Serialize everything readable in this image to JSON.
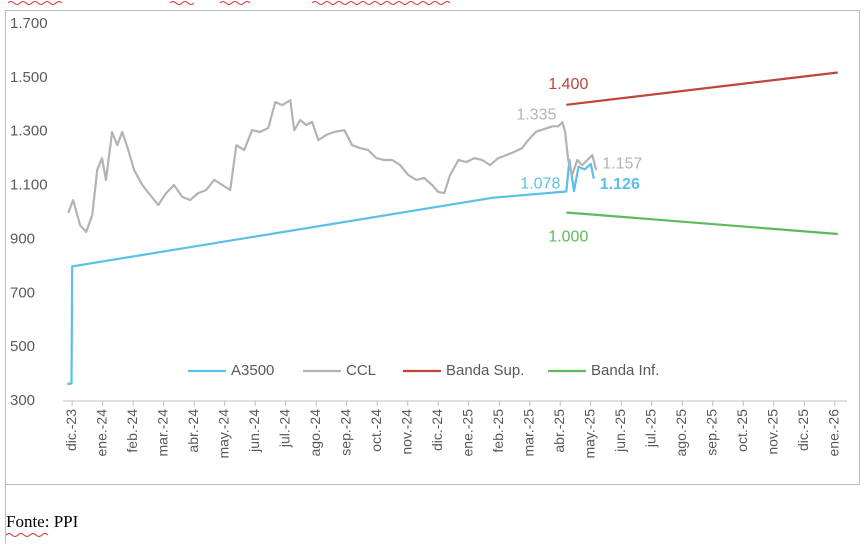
{
  "chart_data": {
    "type": "line",
    "xlim": [
      -0.3,
      25.4
    ],
    "ylim": [
      300,
      1700
    ],
    "yticks": [
      300,
      500,
      700,
      900,
      {
        "value": 1100,
        "label": "1.100"
      },
      {
        "value": 1300,
        "label": "1.300"
      },
      {
        "value": 1500,
        "label": "1.500"
      },
      {
        "value": 1700,
        "label": "1.700"
      }
    ],
    "xticks": [
      {
        "value": 0,
        "label": "dic.-23"
      },
      {
        "value": 1,
        "label": "ene.-24"
      },
      {
        "value": 2,
        "label": "feb.-24"
      },
      {
        "value": 3,
        "label": "mar.-24"
      },
      {
        "value": 4,
        "label": "abr.-24"
      },
      {
        "value": 5,
        "label": "may.-24"
      },
      {
        "value": 6,
        "label": "jun.-24"
      },
      {
        "value": 7,
        "label": "jul.-24"
      },
      {
        "value": 8,
        "label": "ago.-24"
      },
      {
        "value": 9,
        "label": "sep.-24"
      },
      {
        "value": 10,
        "label": "oct.-24"
      },
      {
        "value": 11,
        "label": "nov.-24"
      },
      {
        "value": 12,
        "label": "dic.-24"
      },
      {
        "value": 13,
        "label": "ene.-25"
      },
      {
        "value": 14,
        "label": "feb.-25"
      },
      {
        "value": 15,
        "label": "mar.-25"
      },
      {
        "value": 16,
        "label": "abr.-25"
      },
      {
        "value": 17,
        "label": "may.-25"
      },
      {
        "value": 18,
        "label": "jun.-25"
      },
      {
        "value": 19,
        "label": "jul.-25"
      },
      {
        "value": 20,
        "label": "ago.-25"
      },
      {
        "value": 21,
        "label": "sep.-25"
      },
      {
        "value": 22,
        "label": "oct.-25"
      },
      {
        "value": 23,
        "label": "nov.-25"
      },
      {
        "value": 24,
        "label": "dic.-25"
      },
      {
        "value": 25,
        "label": "ene.-26"
      }
    ],
    "grid": false,
    "legend": "lower center",
    "series": [
      {
        "name": "A3500",
        "color": "#5bbfe8",
        "x": [
          -0.16,
          -0.02,
          0.0,
          13.8,
          16.2,
          16.3,
          16.45,
          16.6,
          16.8,
          17.0,
          17.1
        ],
        "values": [
          363,
          365,
          800,
          1055,
          1078,
          1195,
          1080,
          1170,
          1160,
          1180,
          1126
        ],
        "value_labels": [
          null,
          null,
          null,
          null,
          "1.078",
          null,
          null,
          null,
          null,
          null,
          "1.126"
        ]
      },
      {
        "name": "CCL",
        "color": "#b3b3b3",
        "x": [
          -0.13,
          0.03,
          0.26,
          0.46,
          0.66,
          0.82,
          0.98,
          1.11,
          1.31,
          1.48,
          1.64,
          1.84,
          2.03,
          2.3,
          2.56,
          2.82,
          3.08,
          3.34,
          3.61,
          3.87,
          4.13,
          4.39,
          4.66,
          4.92,
          5.18,
          5.38,
          5.64,
          5.9,
          6.16,
          6.43,
          6.66,
          6.89,
          7.15,
          7.28,
          7.48,
          7.67,
          7.87,
          8.07,
          8.33,
          8.59,
          8.92,
          9.18,
          9.44,
          9.7,
          9.97,
          10.23,
          10.49,
          10.75,
          11.02,
          11.28,
          11.54,
          11.8,
          12.0,
          12.2,
          12.39,
          12.66,
          12.92,
          13.18,
          13.44,
          13.7,
          13.97,
          14.23,
          14.49,
          14.75,
          14.95,
          15.21,
          15.48,
          15.74,
          15.93,
          16.07,
          16.16,
          16.26,
          16.39,
          16.56,
          16.72,
          16.89,
          17.05,
          17.18
        ],
        "values": [
          998,
          1046,
          953,
          928,
          991,
          1158,
          1202,
          1121,
          1299,
          1250,
          1299,
          1232,
          1158,
          1102,
          1065,
          1028,
          1072,
          1102,
          1058,
          1046,
          1072,
          1083,
          1121,
          1102,
          1083,
          1250,
          1232,
          1306,
          1299,
          1314,
          1410,
          1399,
          1417,
          1306,
          1343,
          1325,
          1336,
          1269,
          1288,
          1299,
          1306,
          1250,
          1239,
          1232,
          1202,
          1195,
          1195,
          1176,
          1139,
          1121,
          1128,
          1102,
          1076,
          1072,
          1139,
          1195,
          1187,
          1202,
          1195,
          1176,
          1202,
          1213,
          1225,
          1239,
          1269,
          1300,
          1310,
          1320,
          1320,
          1335,
          1300,
          1195,
          1139,
          1195,
          1176,
          1195,
          1213,
          1157
        ],
        "value_labels": [
          null,
          null,
          null,
          null,
          null,
          null,
          null,
          null,
          null,
          null,
          null,
          null,
          null,
          null,
          null,
          null,
          null,
          null,
          null,
          null,
          null,
          null,
          null,
          null,
          null,
          null,
          null,
          null,
          null,
          null,
          null,
          null,
          null,
          null,
          null,
          null,
          null,
          null,
          null,
          null,
          null,
          null,
          null,
          null,
          null,
          null,
          null,
          null,
          null,
          null,
          null,
          null,
          null,
          null,
          null,
          null,
          null,
          null,
          null,
          null,
          null,
          null,
          null,
          null,
          null,
          null,
          null,
          null,
          null,
          "1.335",
          null,
          null,
          null,
          null,
          null,
          null,
          null,
          "1.157"
        ]
      },
      {
        "name": "Banda Sup.",
        "color": "#c0443a",
        "x": [
          16.2,
          25.1
        ],
        "values": [
          1400,
          1520
        ],
        "value_labels": [
          "1.400",
          null
        ]
      },
      {
        "name": "Banda Inf.",
        "color": "#5cba5c",
        "x": [
          16.2,
          25.1
        ],
        "values": [
          1000,
          920
        ],
        "value_labels": [
          "1.000",
          null
        ]
      }
    ]
  },
  "footer": "Fonte: PPI"
}
